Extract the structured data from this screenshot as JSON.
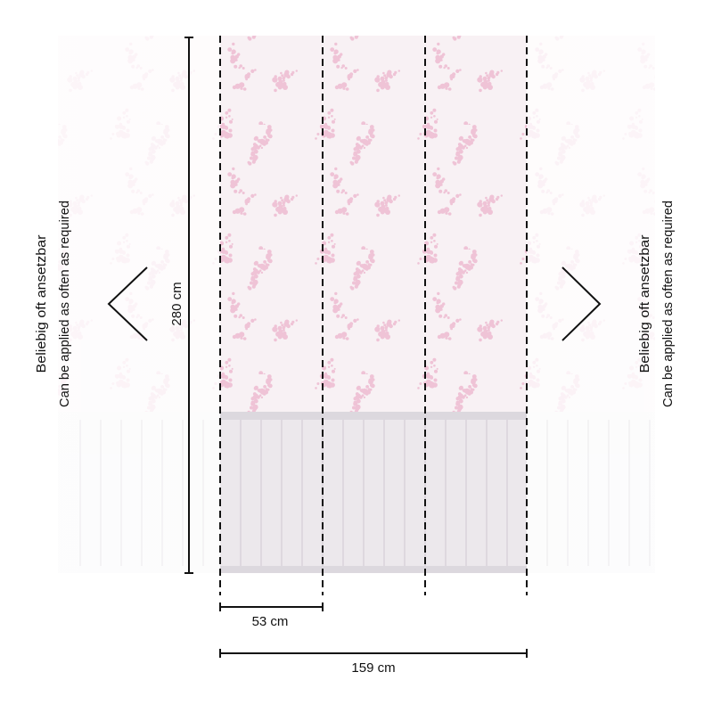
{
  "colors": {
    "floral": "#efc3d6",
    "floral_bg": "#f8f1f4",
    "panel_wood": "#ece8ec",
    "wood_bar": "#dcd8de",
    "line": "#111111"
  },
  "labels": {
    "height": "280 cm",
    "panel_width": "53 cm",
    "total_width": "159 cm",
    "left_note_de": "Beliebig oft ansetzbar",
    "left_note_en": "Can be applied as often as required",
    "right_note_de": "Beliebig oft ansetzbar",
    "right_note_en": "Can be applied as often as required"
  },
  "panels": {
    "count": 3
  },
  "icons": {
    "left": "chevron-left-icon",
    "right": "chevron-right-icon"
  }
}
